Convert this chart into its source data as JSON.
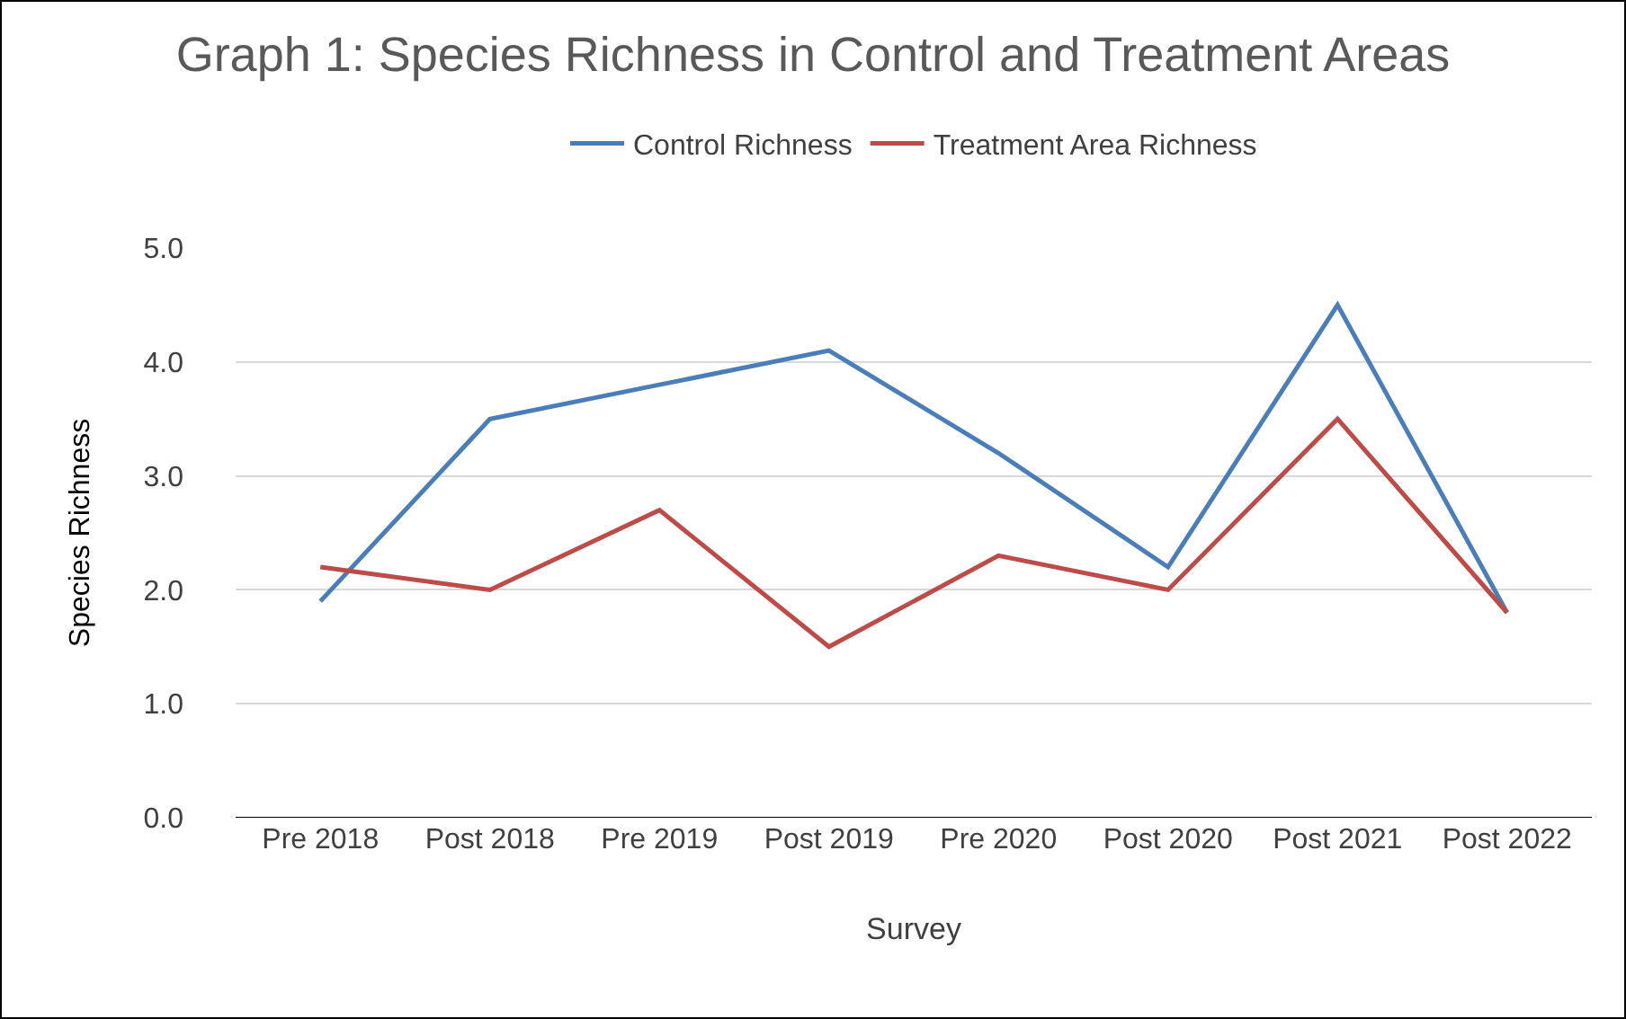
{
  "chart_data": {
    "type": "line",
    "title": "Graph 1: Species Richness in Control and Treatment Areas",
    "xlabel": "Survey",
    "ylabel": "Species Richness",
    "categories": [
      "Pre 2018",
      "Post 2018",
      "Pre 2019",
      "Post 2019",
      "Pre 2020",
      "Post 2020",
      "Post 2021",
      "Post 2022"
    ],
    "series": [
      {
        "name": "Control Richness",
        "color": "#4a7ebb",
        "values": [
          1.9,
          3.5,
          3.8,
          4.1,
          3.2,
          2.2,
          4.5,
          1.8
        ]
      },
      {
        "name": "Treatment Area Richness",
        "color": "#be4b48",
        "values": [
          2.2,
          2.0,
          2.7,
          1.5,
          2.3,
          2.0,
          3.5,
          1.8
        ]
      }
    ],
    "ylim": [
      0,
      5
    ],
    "yticks": [
      {
        "value": 0,
        "label": "0.0"
      },
      {
        "value": 1,
        "label": "1.0"
      },
      {
        "value": 2,
        "label": "2.0"
      },
      {
        "value": 3,
        "label": "3.0"
      },
      {
        "value": 4,
        "label": "4.0"
      },
      {
        "value": 5,
        "label": "5.0"
      }
    ],
    "grid": "y",
    "legend": "top",
    "marker": "none",
    "line_style": "solid"
  }
}
